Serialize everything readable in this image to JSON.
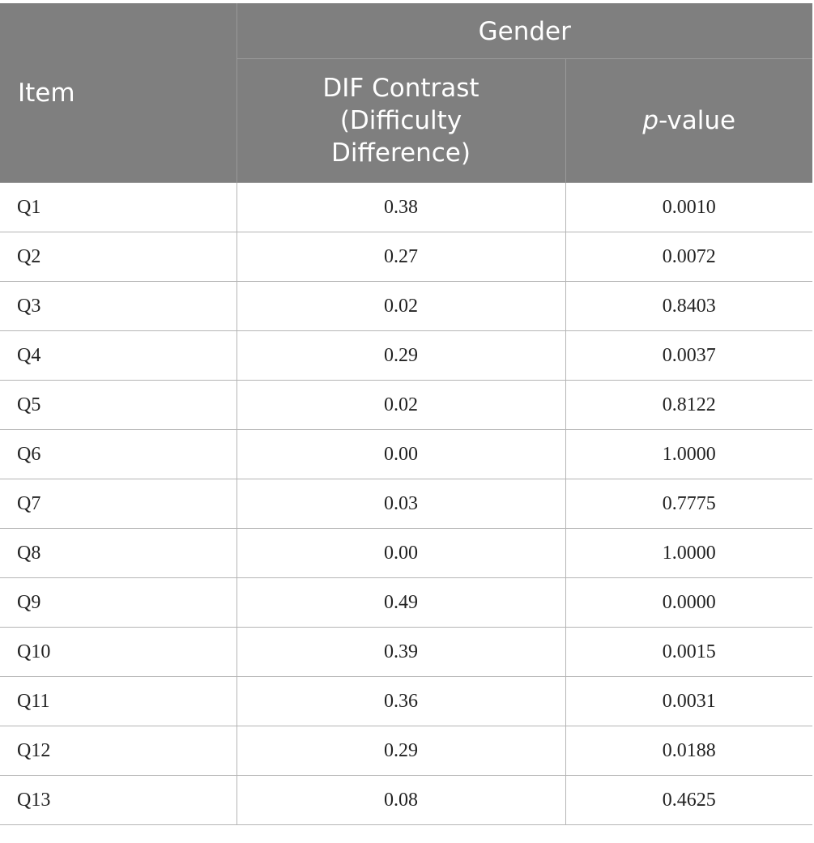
{
  "table": {
    "header": {
      "item": "Item",
      "group": "Gender",
      "dif_lines": [
        "DIF Contrast",
        "(Difficulty",
        "Difference)"
      ],
      "pvalue_italic": "p",
      "pvalue_rest": "-value"
    },
    "rows": [
      {
        "item": "Q1",
        "dif": "0.38",
        "p": "0.0010"
      },
      {
        "item": "Q2",
        "dif": "0.27",
        "p": "0.0072"
      },
      {
        "item": "Q3",
        "dif": "0.02",
        "p": "0.8403"
      },
      {
        "item": "Q4",
        "dif": "0.29",
        "p": "0.0037"
      },
      {
        "item": "Q5",
        "dif": "0.02",
        "p": "0.8122"
      },
      {
        "item": "Q6",
        "dif": "0.00",
        "p": "1.0000"
      },
      {
        "item": "Q7",
        "dif": "0.03",
        "p": "0.7775"
      },
      {
        "item": "Q8",
        "dif": "0.00",
        "p": "1.0000"
      },
      {
        "item": "Q9",
        "dif": "0.49",
        "p": "0.0000"
      },
      {
        "item": "Q10",
        "dif": "0.39",
        "p": "0.0015"
      },
      {
        "item": "Q11",
        "dif": "0.36",
        "p": "0.0031"
      },
      {
        "item": "Q12",
        "dif": "0.29",
        "p": "0.0188"
      },
      {
        "item": "Q13",
        "dif": "0.08",
        "p": "0.4625"
      }
    ]
  }
}
